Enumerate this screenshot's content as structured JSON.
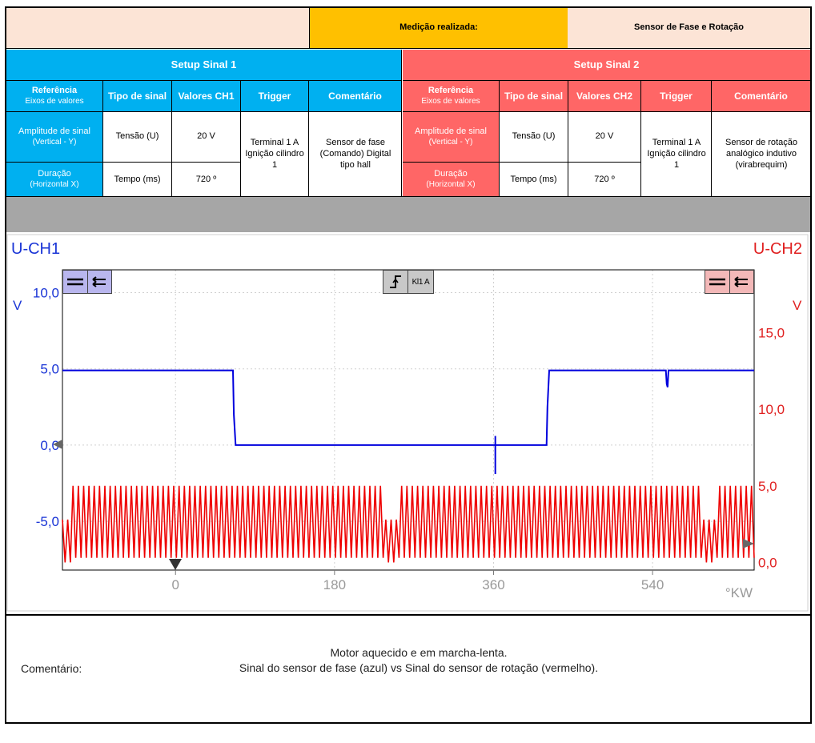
{
  "header": {
    "measurement_label": "Medição realizada:",
    "measurement_value": "Sensor de Fase e Rotação"
  },
  "setup1": {
    "title": "Setup Sinal 1",
    "col_ref": "Referência",
    "col_ref_sub": "Eixos de valores",
    "col_type": "Tipo de sinal",
    "col_values": "Valores CH1",
    "col_trigger": "Trigger",
    "col_comment": "Comentário",
    "row1_label": "Amplitude de sinal",
    "row1_sub": "(Vertical - Y)",
    "row1_type": "Tensão (U)",
    "row1_value": "20 V",
    "row2_label": "Duração",
    "row2_sub": "(Horizontal X)",
    "row2_type": "Tempo (ms)",
    "row2_value": "720 º",
    "trigger": "Terminal 1 A Ignição cilindro 1",
    "comment": "Sensor de fase (Comando) Digital tipo hall"
  },
  "setup2": {
    "title": "Setup Sinal 2",
    "col_ref": "Referência",
    "col_ref_sub": "Eixos de valores",
    "col_type": "Tipo de sinal",
    "col_values": "Valores CH2",
    "col_trigger": "Trigger",
    "col_comment": "Comentário",
    "row1_label": "Amplitude de sinal",
    "row1_sub": "(Vertical - Y)",
    "row1_type": "Tensão (U)",
    "row1_value": "20 V",
    "row2_label": "Duração",
    "row2_sub": "(Horizontal X)",
    "row2_type": "Tempo (ms)",
    "row2_value": "720 º",
    "trigger": "Terminal 1 A Ignição cilindro 1",
    "comment": "Sensor de rotação analógico indutivo (virabrequim)"
  },
  "colors": {
    "header_yellow": "#FFC000",
    "header_pink": "#FCE4D6",
    "setup1_blue": "#00B0F0",
    "setup2_red": "#FF6666",
    "gray_band": "#A6A6A6",
    "ch1_line": "#0000DD",
    "ch2_line": "#EE0000"
  },
  "trigger_badge": "Kl1 A",
  "chart_data": {
    "type": "line",
    "ch1_label": "U-CH1",
    "ch2_label": "U-CH2",
    "y1_unit": "V",
    "y2_unit": "V",
    "x_unit": "°KW",
    "y1_ticks": [
      "10,0",
      "5,0",
      "0,0",
      "-5,0"
    ],
    "y1_tick_values": [
      10,
      5,
      0,
      -5
    ],
    "y2_ticks": [
      "15,0",
      "10,0",
      "5,0",
      "0,0"
    ],
    "y2_tick_values": [
      15,
      10,
      5,
      0
    ],
    "x_ticks": [
      "0",
      "180",
      "360",
      "540"
    ],
    "x_tick_values": [
      0,
      180,
      360,
      540
    ],
    "xlim": [
      -128,
      655
    ],
    "y1lim": [
      -8.2,
      11.5
    ],
    "y2lim": [
      -0.5,
      19.1
    ],
    "grid": true,
    "series": [
      {
        "name": "U-CH1",
        "axis": "left",
        "x": [
          -128,
          65,
          66,
          68,
          420,
          421,
          423,
          555,
          556,
          557,
          558,
          655
        ],
        "y": [
          4.9,
          4.9,
          2.0,
          0.0,
          0.0,
          2.5,
          4.9,
          4.9,
          4.0,
          3.8,
          4.9,
          4.9
        ]
      },
      {
        "name": "U-CH2",
        "axis": "right",
        "description_free": true,
        "oscillation": {
          "period_deg": 6,
          "min": 0.3,
          "max": 5.0,
          "gaps_at": [
            -125,
            245,
            605
          ]
        }
      }
    ]
  },
  "comment_section": {
    "label": "Comentário:",
    "line1": "Motor aquecido e em marcha-lenta.",
    "line2": "Sinal do sensor de fase (azul) vs Sinal do sensor de rotação (vermelho)."
  }
}
